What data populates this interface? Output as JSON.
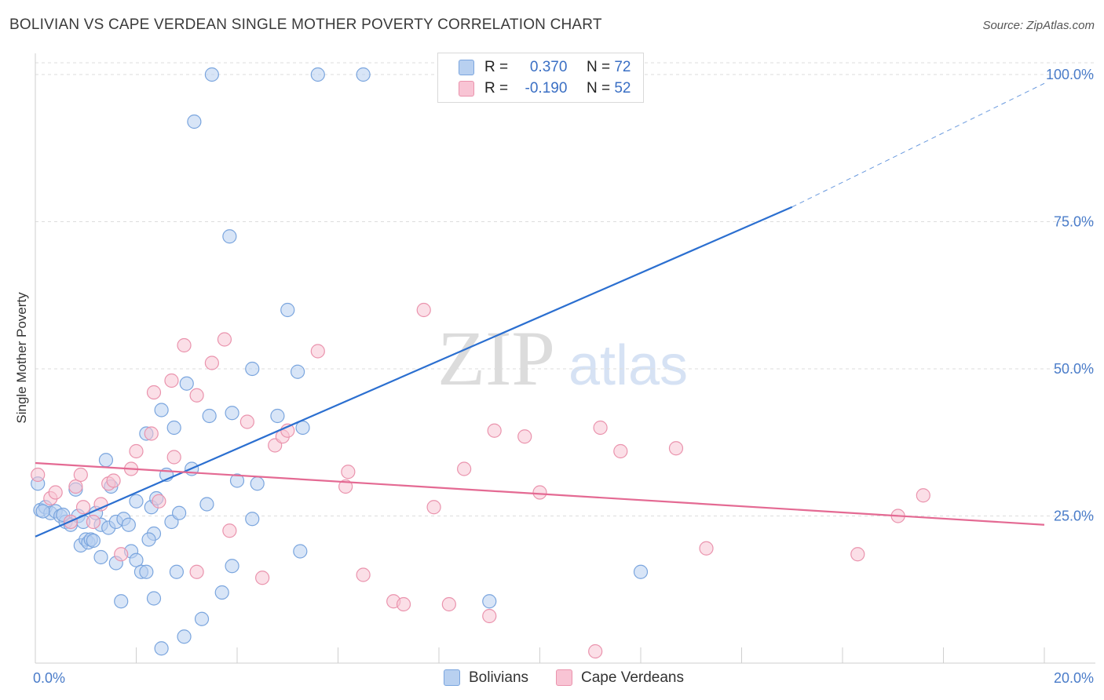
{
  "header": {
    "title": "BOLIVIAN VS CAPE VERDEAN SINGLE MOTHER POVERTY CORRELATION CHART",
    "source": "Source: ZipAtlas.com"
  },
  "watermark": {
    "zip": "ZIP",
    "atlas": "atlas"
  },
  "colors": {
    "blue_fill": "#b8d0f0",
    "blue_stroke": "#7aa5de",
    "blue_line": "#2b6fd0",
    "pink_fill": "#f8c4d4",
    "pink_stroke": "#ea93ad",
    "pink_line": "#e46a93",
    "axis_text": "#4a7cc9",
    "grid": "#dddddd"
  },
  "legend": {
    "rows": [
      {
        "r_label": "R =",
        "r_value": "0.370",
        "n_label": "N =",
        "n_value": "72",
        "color": "#b8d0f0",
        "border": "#7aa5de"
      },
      {
        "r_label": "R =",
        "r_value": "-0.190",
        "n_label": "N =",
        "n_value": "52",
        "color": "#f8c4d4",
        "border": "#ea93ad"
      }
    ]
  },
  "bottom_legend": [
    {
      "label": "Bolivians",
      "color": "#b8d0f0",
      "border": "#7aa5de"
    },
    {
      "label": "Cape Verdeans",
      "color": "#f8c4d4",
      "border": "#ea93ad"
    }
  ],
  "chart_data": {
    "type": "scatter",
    "title": "BOLIVIAN VS CAPE VERDEAN SINGLE MOTHER POVERTY CORRELATION CHART",
    "xlabel": "",
    "ylabel": "Single Mother Poverty",
    "xlim": [
      0,
      20
    ],
    "ylim": [
      0,
      100
    ],
    "x_tick_labels": [
      {
        "value": 0,
        "label": "0.0%"
      },
      {
        "value": 20,
        "label": "20.0%"
      }
    ],
    "y_tick_labels": [
      {
        "value": 25,
        "label": "25.0%"
      },
      {
        "value": 50,
        "label": "50.0%"
      },
      {
        "value": 75,
        "label": "75.0%"
      },
      {
        "value": 100,
        "label": "100.0%"
      }
    ],
    "y_gridlines": [
      25,
      50,
      75,
      100
    ],
    "x_minor_ticks": [
      2,
      4,
      6,
      8,
      10,
      12,
      14,
      16,
      18,
      20
    ],
    "series": [
      {
        "name": "Bolivians",
        "r": 0.37,
        "n": 72,
        "trend": {
          "x0": 0,
          "y0": 21.5,
          "x1": 15.0,
          "y1": 77.5,
          "dashed_to_x": 20,
          "dashed_to_y": 98.5
        },
        "points": [
          [
            0.05,
            30.5
          ],
          [
            0.1,
            26.0
          ],
          [
            0.2,
            26.5
          ],
          [
            0.3,
            25.5
          ],
          [
            0.4,
            25.8
          ],
          [
            0.5,
            25.0
          ],
          [
            0.6,
            24.0
          ],
          [
            0.7,
            23.5
          ],
          [
            0.8,
            29.5
          ],
          [
            0.85,
            25.0
          ],
          [
            0.9,
            20.0
          ],
          [
            1.0,
            21.0
          ],
          [
            1.05,
            20.5
          ],
          [
            1.1,
            21.0
          ],
          [
            1.2,
            25.5
          ],
          [
            1.3,
            23.5
          ],
          [
            1.3,
            18.0
          ],
          [
            1.4,
            34.5
          ],
          [
            1.45,
            23.0
          ],
          [
            1.6,
            24.0
          ],
          [
            1.6,
            17.0
          ],
          [
            1.7,
            10.5
          ],
          [
            1.75,
            24.5
          ],
          [
            1.85,
            23.5
          ],
          [
            1.9,
            19.0
          ],
          [
            2.0,
            17.5
          ],
          [
            2.0,
            27.5
          ],
          [
            2.1,
            15.5
          ],
          [
            2.2,
            39.0
          ],
          [
            2.2,
            15.5
          ],
          [
            2.3,
            26.5
          ],
          [
            2.35,
            22.0
          ],
          [
            2.35,
            11.0
          ],
          [
            2.4,
            28.0
          ],
          [
            2.5,
            43.0
          ],
          [
            2.5,
            2.5
          ],
          [
            2.6,
            32.0
          ],
          [
            2.7,
            24.0
          ],
          [
            2.75,
            40.0
          ],
          [
            2.8,
            15.5
          ],
          [
            2.85,
            25.5
          ],
          [
            2.95,
            4.5
          ],
          [
            3.0,
            47.5
          ],
          [
            3.15,
            92.0
          ],
          [
            3.3,
            7.5
          ],
          [
            3.4,
            27.0
          ],
          [
            3.45,
            42.0
          ],
          [
            3.5,
            100.0
          ],
          [
            3.7,
            12.0
          ],
          [
            3.85,
            72.5
          ],
          [
            3.9,
            42.5
          ],
          [
            3.9,
            16.5
          ],
          [
            4.0,
            31.0
          ],
          [
            4.3,
            50.0
          ],
          [
            4.3,
            24.5
          ],
          [
            4.4,
            30.5
          ],
          [
            4.8,
            42.0
          ],
          [
            5.0,
            60.0
          ],
          [
            5.2,
            49.5
          ],
          [
            5.25,
            19.0
          ],
          [
            5.3,
            40.0
          ],
          [
            5.6,
            100.0
          ],
          [
            6.5,
            100.0
          ],
          [
            9.0,
            10.5
          ],
          [
            12.0,
            15.5
          ],
          [
            0.15,
            25.8
          ],
          [
            0.55,
            25.2
          ],
          [
            0.95,
            24.0
          ],
          [
            1.15,
            20.8
          ],
          [
            1.5,
            30.0
          ],
          [
            2.25,
            21.0
          ],
          [
            3.1,
            33.0
          ]
        ]
      },
      {
        "name": "Cape Verdeans",
        "r": -0.19,
        "n": 52,
        "trend": {
          "x0": 0,
          "y0": 34.0,
          "x1": 20,
          "y1": 23.5
        },
        "points": [
          [
            0.05,
            32.0
          ],
          [
            0.3,
            28.0
          ],
          [
            0.4,
            29.0
          ],
          [
            0.7,
            24.0
          ],
          [
            0.8,
            30.0
          ],
          [
            0.9,
            32.0
          ],
          [
            0.95,
            26.5
          ],
          [
            1.15,
            24.0
          ],
          [
            1.3,
            27.0
          ],
          [
            1.45,
            30.5
          ],
          [
            1.55,
            31.0
          ],
          [
            1.7,
            18.5
          ],
          [
            1.9,
            33.0
          ],
          [
            2.0,
            36.0
          ],
          [
            2.3,
            39.0
          ],
          [
            2.35,
            46.0
          ],
          [
            2.45,
            27.5
          ],
          [
            2.7,
            48.0
          ],
          [
            2.75,
            35.0
          ],
          [
            2.95,
            54.0
          ],
          [
            3.2,
            45.5
          ],
          [
            3.2,
            15.5
          ],
          [
            3.5,
            51.0
          ],
          [
            3.75,
            55.0
          ],
          [
            3.85,
            22.5
          ],
          [
            4.2,
            41.0
          ],
          [
            4.5,
            14.5
          ],
          [
            4.75,
            37.0
          ],
          [
            4.9,
            38.5
          ],
          [
            5.0,
            39.5
          ],
          [
            5.6,
            53.0
          ],
          [
            6.15,
            30.0
          ],
          [
            6.2,
            32.5
          ],
          [
            6.5,
            15.0
          ],
          [
            7.1,
            10.5
          ],
          [
            7.3,
            10.0
          ],
          [
            7.7,
            60.0
          ],
          [
            7.9,
            26.5
          ],
          [
            8.2,
            10.0
          ],
          [
            8.5,
            33.0
          ],
          [
            9.0,
            8.0
          ],
          [
            9.1,
            39.5
          ],
          [
            9.7,
            38.5
          ],
          [
            10.0,
            29.0
          ],
          [
            11.1,
            2.0
          ],
          [
            11.2,
            40.0
          ],
          [
            11.6,
            36.0
          ],
          [
            12.7,
            36.5
          ],
          [
            13.3,
            19.5
          ],
          [
            16.3,
            18.5
          ],
          [
            17.1,
            25.0
          ],
          [
            17.6,
            28.5
          ]
        ]
      }
    ],
    "legend_position": "top-center"
  }
}
